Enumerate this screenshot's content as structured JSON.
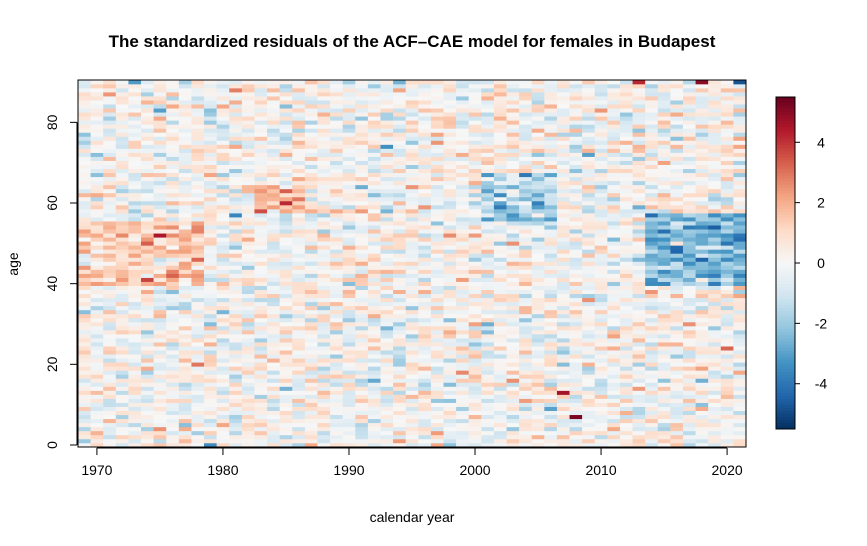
{
  "chart_data": {
    "type": "heatmap",
    "title": "The standardized residuals of the ACF–CAE model for females in Budapest",
    "xlabel": "calendar year",
    "ylabel": "age",
    "x": {
      "start": 1969,
      "end": 2021,
      "ticks": [
        1970,
        1980,
        1990,
        2000,
        2010,
        2020
      ],
      "tick_labels": [
        "1970",
        "1980",
        "1990",
        "2000",
        "2010",
        "2020"
      ]
    },
    "y": {
      "start": 0,
      "end": 90,
      "ticks": [
        0,
        20,
        40,
        60,
        80
      ],
      "tick_labels": [
        "0",
        "20",
        "40",
        "60",
        "80"
      ]
    },
    "colorbar": {
      "range": [
        -5.5,
        5.5
      ],
      "ticks": [
        -4,
        -2,
        0,
        2,
        4
      ],
      "tick_labels": [
        "-4",
        "-2",
        "0",
        "2",
        "4"
      ],
      "palette": [
        "#67001F",
        "#B2182B",
        "#D6604D",
        "#F4A582",
        "#FDDBC7",
        "#F7F7F7",
        "#D1E5F0",
        "#92C5DE",
        "#4393C3",
        "#2166AC",
        "#053061"
      ]
    },
    "notable_cells": [
      {
        "year": 2008,
        "age": 7,
        "value": 5.2
      },
      {
        "year": 2007,
        "age": 13,
        "value": 4.6
      },
      {
        "year": 2018,
        "age": 90,
        "value": 5.0
      },
      {
        "year": 2013,
        "age": 90,
        "value": 4.2
      },
      {
        "year": 1975,
        "age": 52,
        "value": 4.5
      },
      {
        "year": 2021,
        "age": 90,
        "value": -4.8
      },
      {
        "year": 2021,
        "age": 51,
        "value": -4.2
      },
      {
        "year": 2020,
        "age": 50,
        "value": -4.0
      },
      {
        "year": 1979,
        "age": 0,
        "value": -3.5
      }
    ],
    "regions": [
      {
        "years": [
          2014,
          2021
        ],
        "ages": [
          40,
          57
        ],
        "mean_value": -2.5
      },
      {
        "years": [
          2001,
          2006
        ],
        "ages": [
          55,
          67
        ],
        "mean_value": -1.6
      },
      {
        "years": [
          1969,
          1978
        ],
        "ages": [
          40,
          55
        ],
        "mean_value": 1.3
      },
      {
        "years": [
          1983,
          1986
        ],
        "ages": [
          58,
          64
        ],
        "mean_value": 2.0
      }
    ]
  }
}
